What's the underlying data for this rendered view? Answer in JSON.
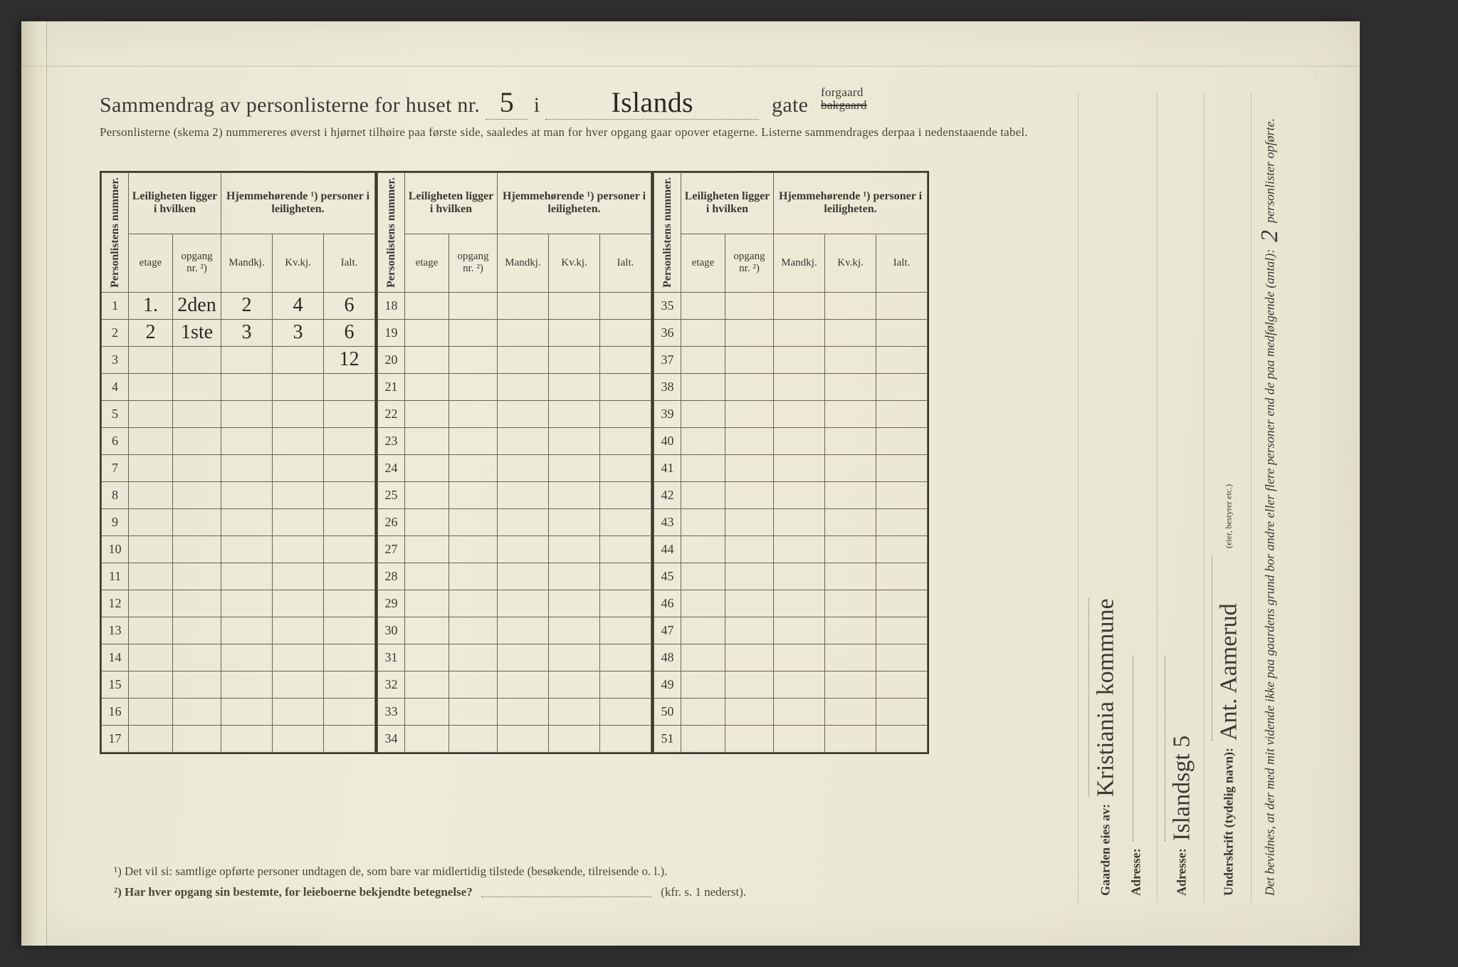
{
  "page": {
    "background_color": "#e9e7d3",
    "ink_color": "#3b3a32",
    "rule_color": "#6a6550",
    "handwriting_color": "#2b2a22"
  },
  "header": {
    "title_prefix": "Sammendrag av personlisterne for huset nr.",
    "house_number": "5",
    "i": "i",
    "street_name": "Islands",
    "gate": "gate",
    "forgaard": "forgaard",
    "bakgaard_struck": "bakgaard",
    "subline": "Personlisterne (skema 2) nummereres øverst i hjørnet tilhøire paa første side, saaledes at man for hver opgang gaar opover etagerne.   Listerne sammendrages derpaa i nedenstaaende tabel."
  },
  "table": {
    "col_personlistens": "Personlistens nummer.",
    "grp_leil": "Leiligheten ligger i hvilken",
    "grp_hjem": "Hjemmehørende ¹) personer i leiligheten.",
    "sub_etage": "etage",
    "sub_opgang": "opgang nr. ²)",
    "sub_mandkj": "Mandkj.",
    "sub_kvkj": "Kv.kj.",
    "sub_ialt": "Ialt.",
    "blocks": [
      {
        "start": 1,
        "end": 17
      },
      {
        "start": 18,
        "end": 34
      },
      {
        "start": 35,
        "end": 51
      }
    ],
    "entries": {
      "1": {
        "etage": "1.",
        "opgang": "2den",
        "mandkj": "2",
        "kvkj": "4",
        "ialt": "6"
      },
      "2": {
        "etage": "2",
        "opgang": "1ste",
        "mandkj": "3",
        "kvkj": "3",
        "ialt": "6"
      },
      "3": {
        "ialt": "12"
      }
    }
  },
  "footnotes": {
    "fn1": "¹)  Det vil si: samtlige opførte personer undtagen de, som bare var midlertidig tilstede (besøkende, tilreisende o. l.).",
    "fn2_label": "²)  Har hver opgang sin bestemte, for leieboerne bekjendte betegnelse?",
    "fn2_tail": "(kfr. s. 1 nederst)."
  },
  "sidebar": {
    "attest_line": "Det bevidnes, at der med mit vidende ikke paa gaardens grund bor andre eller flere personer end de paa medfølgende (antal):",
    "attest_count": "2",
    "attest_tail": "personlister opførte.",
    "underskrift_label": "Underskrift (tydelig navn):",
    "underskrift_value": "Ant. Aamerud",
    "eier_bestyrer": "(eier, bestyrer etc.)",
    "adresse_label": "Adresse:",
    "adresse_value": "Islandsgt 5",
    "gaarden_label": "Gaarden eies av:",
    "gaarden_value": "Kristiania kommune",
    "adresse2_label": "Adresse:"
  }
}
